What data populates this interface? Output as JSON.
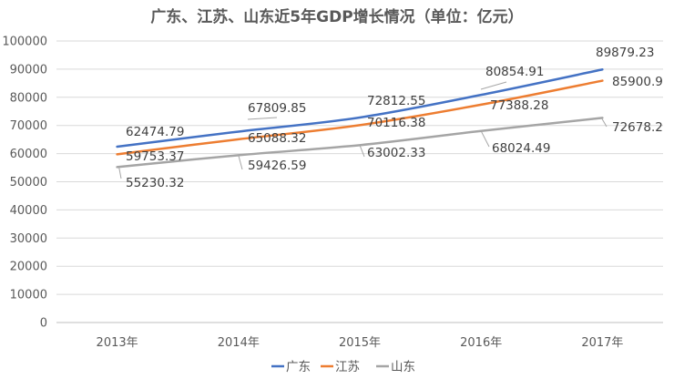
{
  "chart_data": {
    "type": "line",
    "title": "广东、江苏、山东近5年GDP增长情况（单位：亿元）",
    "categories": [
      "2013年",
      "2014年",
      "2015年",
      "2016年",
      "2017年"
    ],
    "ylim": [
      0,
      100000
    ],
    "yticks": [
      0,
      10000,
      20000,
      30000,
      40000,
      50000,
      60000,
      70000,
      80000,
      90000,
      100000
    ],
    "grid": true,
    "legend_position": "bottom",
    "series": [
      {
        "name": "广东",
        "color": "#4472C4",
        "values": [
          62474.79,
          67809.85,
          72812.55,
          80854.91,
          89879.23
        ],
        "labels": [
          "62474.79",
          "67809.85",
          "72812.55",
          "80854.91",
          "89879.23"
        ]
      },
      {
        "name": "江苏",
        "color": "#ED7D31",
        "values": [
          59753.37,
          65088.32,
          70116.38,
          77388.28,
          85900.9
        ],
        "labels": [
          "59753.37",
          "65088.32",
          "70116.38",
          "77388.28",
          "85900.9"
        ]
      },
      {
        "name": "山东",
        "color": "#A5A5A5",
        "values": [
          55230.32,
          59426.59,
          63002.33,
          68024.49,
          72678.2
        ],
        "labels": [
          "55230.32",
          "59426.59",
          "63002.33",
          "68024.49",
          "72678.2"
        ]
      }
    ]
  }
}
